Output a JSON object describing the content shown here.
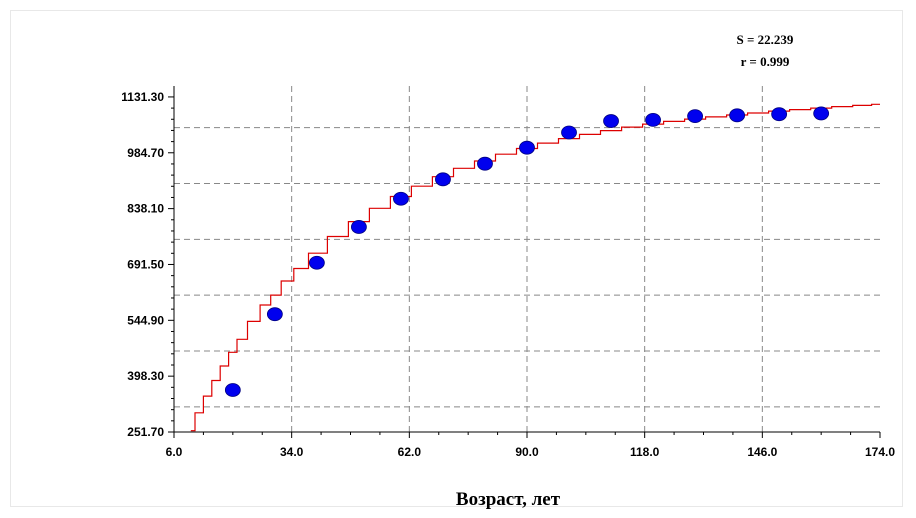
{
  "stats": {
    "s_text": "S = 22.239",
    "r_text": "r = 0.999"
  },
  "chart_data": {
    "type": "scatter",
    "title": "",
    "xlabel": "Возраст, лет",
    "ylabel": "",
    "xlim": [
      6.0,
      174.0
    ],
    "ylim": [
      251.7,
      1160.0
    ],
    "x_ticks": [
      "6.0",
      "34.0",
      "62.0",
      "90.0",
      "118.0",
      "146.0",
      "174.0"
    ],
    "y_ticks": [
      "251.70",
      "398.30",
      "544.90",
      "691.50",
      "838.10",
      "984.70",
      "1131.30"
    ],
    "grid": true,
    "colors": {
      "points": "#0000ee",
      "curve": "#dd0000",
      "grid": "#888888"
    },
    "series": [
      {
        "type": "scatter",
        "x": [
          20,
          30,
          40,
          50,
          60,
          70,
          80,
          90,
          100,
          110,
          120,
          130,
          140,
          150,
          160
        ],
        "y": [
          362,
          561,
          696,
          790,
          864,
          915,
          956,
          998,
          1038,
          1068,
          1071,
          1081,
          1083,
          1086,
          1088
        ]
      },
      {
        "type": "line",
        "x": [
          10,
          12,
          14,
          16,
          18,
          20,
          22,
          25,
          28,
          30,
          33,
          36,
          40,
          45,
          50,
          55,
          60,
          65,
          70,
          75,
          80,
          85,
          90,
          95,
          100,
          105,
          110,
          115,
          120,
          125,
          130,
          135,
          140,
          145,
          150,
          155,
          160,
          165,
          170,
          174
        ],
        "y": [
          255,
          302,
          346,
          387,
          425,
          461,
          495,
          542,
          585,
          611,
          648,
          681,
          721,
          765,
          804,
          839,
          870,
          897,
          922,
          944,
          963,
          981,
          996,
          1010,
          1022,
          1033,
          1043,
          1052,
          1060,
          1067,
          1073,
          1079,
          1084,
          1089,
          1094,
          1098,
          1102,
          1106,
          1109,
          1112
        ]
      }
    ]
  }
}
